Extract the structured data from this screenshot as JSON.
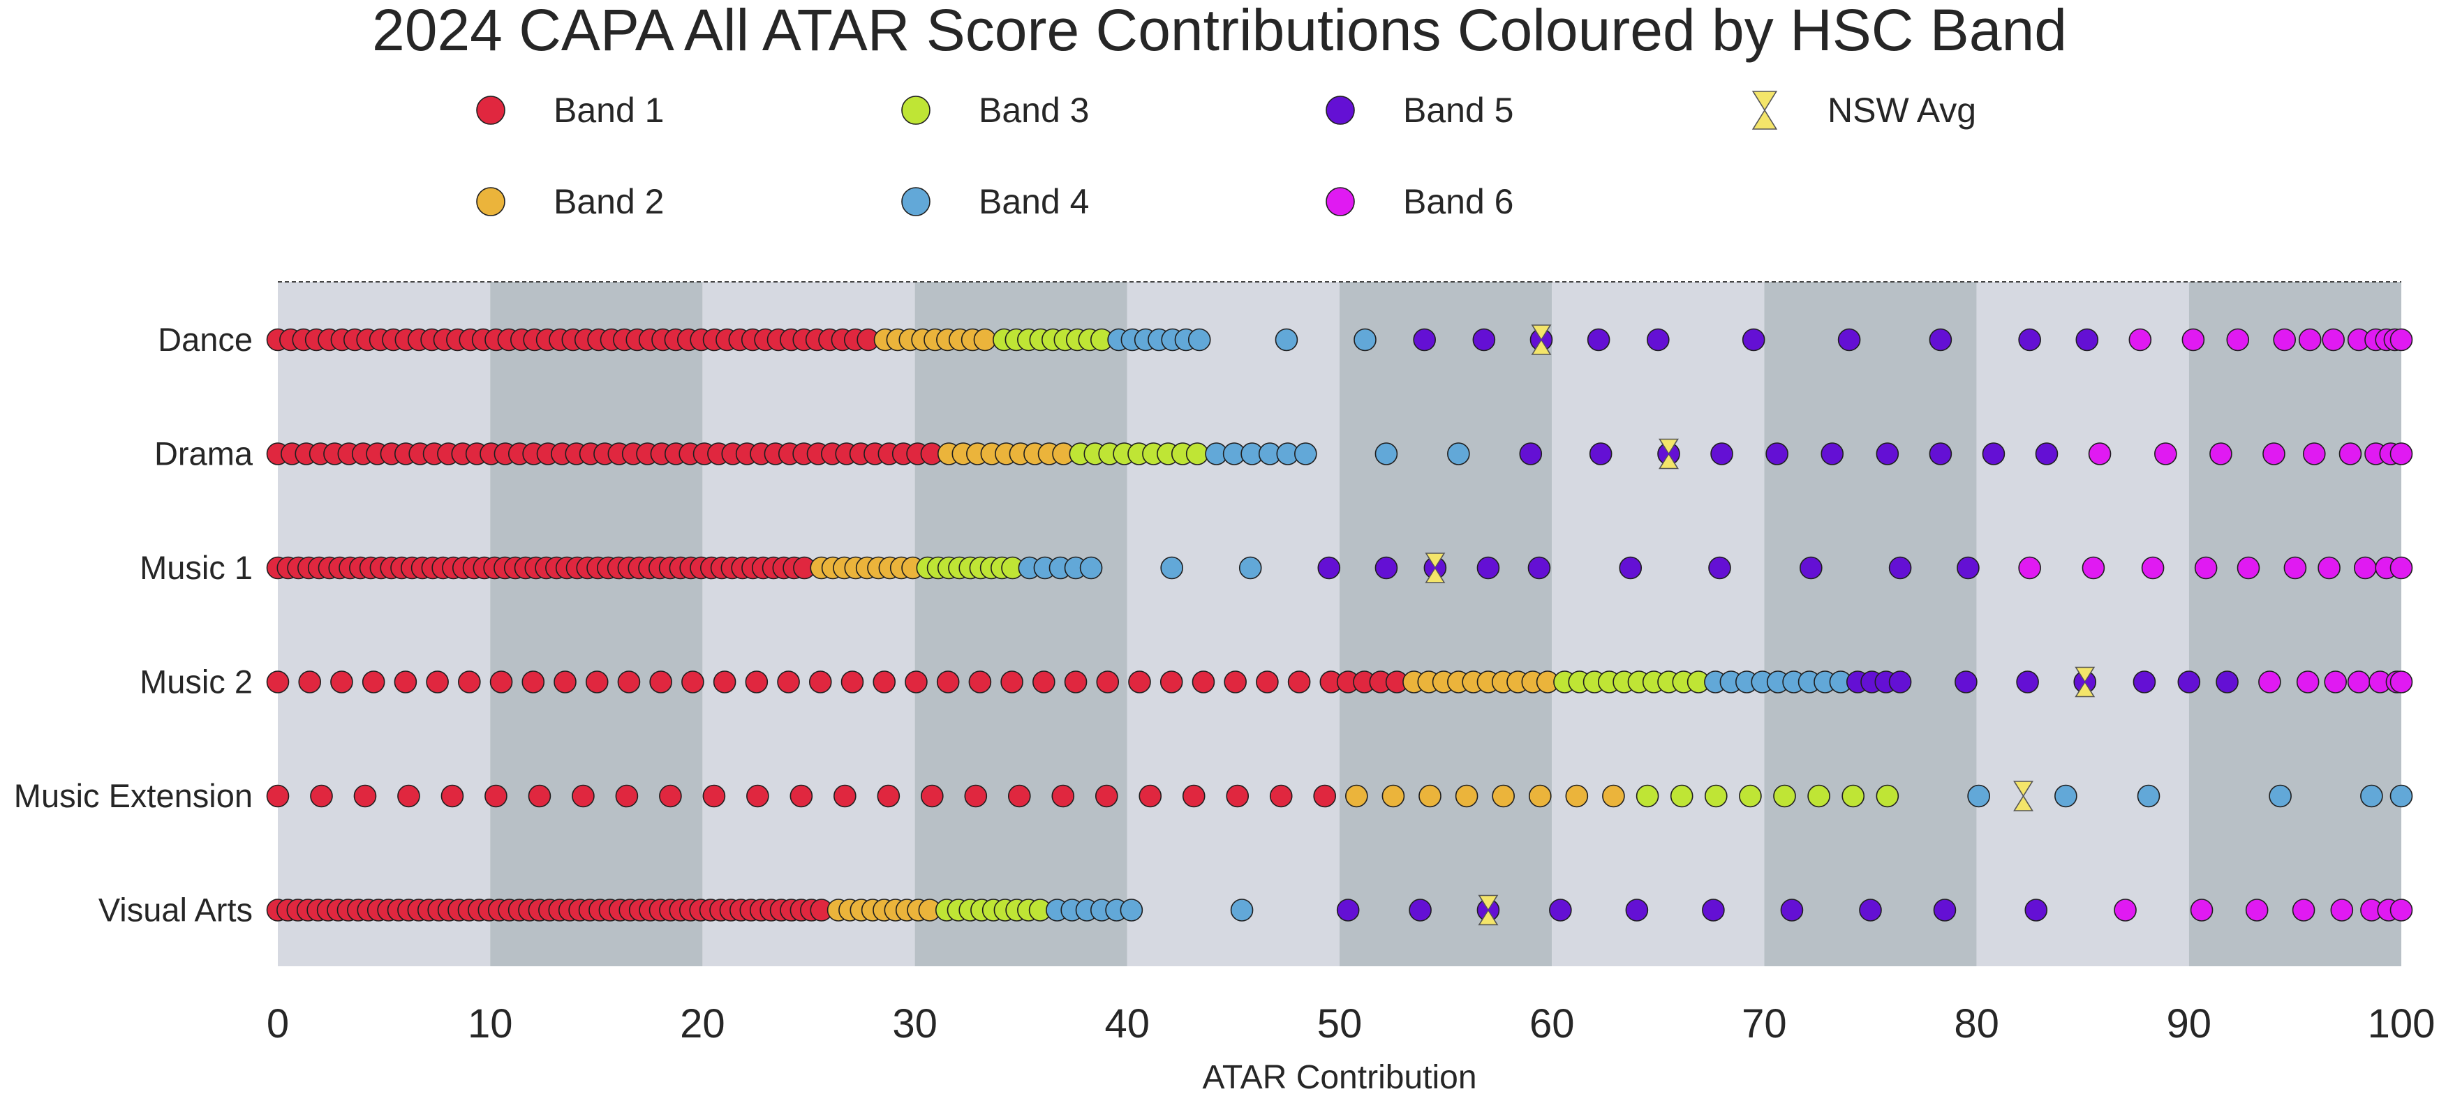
{
  "chart_data": {
    "type": "scatter",
    "title": "2024 CAPA All ATAR Score Contributions Coloured by HSC Band",
    "xlabel": "ATAR Contribution",
    "ylabel": "",
    "xlim": [
      0,
      100
    ],
    "x_ticks": [
      "0",
      "10",
      "20",
      "30",
      "40",
      "50",
      "60",
      "70",
      "80",
      "90",
      "100"
    ],
    "categories": [
      "Dance",
      "Drama",
      "Music 1",
      "Music 2",
      "Music Extension",
      "Visual Arts"
    ],
    "legend": [
      {
        "name": "Band 1",
        "color": "#e0273f",
        "marker": "circle"
      },
      {
        "name": "Band 2",
        "color": "#ebb43b",
        "marker": "circle"
      },
      {
        "name": "Band 3",
        "color": "#bfe535",
        "marker": "circle"
      },
      {
        "name": "Band 4",
        "color": "#62a8d8",
        "marker": "circle"
      },
      {
        "name": "Band 5",
        "color": "#6410d4",
        "marker": "circle"
      },
      {
        "name": "Band 6",
        "color": "#e01af2",
        "marker": "circle"
      },
      {
        "name": "NSW Avg",
        "color": "#f4e56a",
        "marker": "hourglass"
      }
    ],
    "shading": {
      "light": "#d6d9e1",
      "dark": "#b8c0c6"
    },
    "series": [
      {
        "category": "Dance",
        "nsw_avg": 59.5,
        "bands": [
          {
            "band": "Band 1",
            "min": 0,
            "max": 27.8,
            "count": 47
          },
          {
            "band": "Band 2",
            "min": 28.6,
            "max": 33.3,
            "count": 9
          },
          {
            "band": "Band 3",
            "min": 34.2,
            "max": 38.8,
            "count": 9
          },
          {
            "band": "Band 4",
            "min": 39.6,
            "max": 43.4,
            "count": 7
          },
          {
            "band": "Band 4",
            "points": [
              47.5,
              51.2
            ]
          },
          {
            "band": "Band 5",
            "points": [
              54.0,
              56.8,
              59.5,
              62.2,
              65.0,
              69.5,
              74.0,
              78.3,
              82.5,
              85.2
            ]
          },
          {
            "band": "Band 6",
            "points": [
              87.7,
              90.2,
              92.3,
              94.5,
              95.7,
              96.8,
              98.0,
              98.8,
              99.3,
              99.7,
              100
            ]
          }
        ]
      },
      {
        "category": "Drama",
        "nsw_avg": 65.5,
        "bands": [
          {
            "band": "Band 1",
            "min": 0,
            "max": 30.8,
            "count": 47
          },
          {
            "band": "Band 2",
            "min": 31.6,
            "max": 37.0,
            "count": 9
          },
          {
            "band": "Band 3",
            "min": 37.8,
            "max": 43.3,
            "count": 9
          },
          {
            "band": "Band 4",
            "min": 44.2,
            "max": 48.4,
            "count": 6
          },
          {
            "band": "Band 4",
            "points": [
              52.2,
              55.6
            ]
          },
          {
            "band": "Band 5",
            "points": [
              59.0,
              62.3,
              65.5,
              68.0,
              70.6,
              73.2,
              75.8,
              78.3,
              80.8,
              83.3
            ]
          },
          {
            "band": "Band 6",
            "points": [
              85.8,
              88.9,
              91.5,
              94.0,
              95.9,
              97.6,
              98.8,
              99.5,
              100
            ]
          }
        ]
      },
      {
        "category": "Music 1",
        "nsw_avg": 54.5,
        "bands": [
          {
            "band": "Band 1",
            "min": 0,
            "max": 24.8,
            "count": 52
          },
          {
            "band": "Band 2",
            "min": 25.6,
            "max": 29.9,
            "count": 9
          },
          {
            "band": "Band 3",
            "min": 30.6,
            "max": 34.6,
            "count": 9
          },
          {
            "band": "Band 4",
            "min": 35.4,
            "max": 38.3,
            "count": 5
          },
          {
            "band": "Band 4",
            "points": [
              42.1,
              45.8
            ]
          },
          {
            "band": "Band 5",
            "points": [
              49.5,
              52.2,
              54.5,
              57.0,
              59.4,
              63.7,
              67.9,
              72.2,
              76.4,
              79.6
            ]
          },
          {
            "band": "Band 6",
            "points": [
              82.5,
              85.5,
              88.3,
              90.8,
              92.8,
              95.0,
              96.6,
              98.3,
              99.3,
              100
            ]
          }
        ]
      },
      {
        "category": "Music 2",
        "nsw_avg": 85.1,
        "bands": [
          {
            "band": "Band 1",
            "min": 0,
            "max": 49.6,
            "count": 34
          },
          {
            "band": "Band 1",
            "min": 50.4,
            "max": 52.7,
            "count": 4
          },
          {
            "band": "Band 2",
            "min": 53.5,
            "max": 59.8,
            "count": 10
          },
          {
            "band": "Band 3",
            "min": 60.6,
            "max": 66.9,
            "count": 10
          },
          {
            "band": "Band 4",
            "min": 67.7,
            "max": 73.6,
            "count": 9
          },
          {
            "band": "Band 5",
            "min": 74.4,
            "max": 76.4,
            "count": 4
          },
          {
            "band": "Band 5",
            "points": [
              79.5,
              82.4,
              85.1,
              87.9,
              90.0,
              91.8
            ]
          },
          {
            "band": "Band 6",
            "points": [
              93.8,
              95.6,
              96.9,
              98.0,
              99.0,
              99.8,
              100
            ]
          }
        ]
      },
      {
        "category": "Music Extension",
        "nsw_avg": 82.2,
        "bands": [
          {
            "band": "Band 1",
            "min": 0,
            "max": 49.3,
            "count": 25
          },
          {
            "band": "Band 2",
            "min": 50.8,
            "max": 62.9,
            "count": 8
          },
          {
            "band": "Band 3",
            "min": 64.5,
            "max": 75.8,
            "count": 8
          },
          {
            "band": "Band 4",
            "points": [
              80.1,
              84.2,
              88.1,
              94.3,
              98.6,
              100
            ]
          }
        ]
      },
      {
        "category": "Visual Arts",
        "nsw_avg": 57.0,
        "bands": [
          {
            "band": "Band 1",
            "min": 0,
            "max": 25.6,
            "count": 55
          },
          {
            "band": "Band 2",
            "min": 26.4,
            "max": 30.7,
            "count": 9
          },
          {
            "band": "Band 3",
            "min": 31.5,
            "max": 35.9,
            "count": 9
          },
          {
            "band": "Band 4",
            "min": 36.7,
            "max": 40.2,
            "count": 6
          },
          {
            "band": "Band 4",
            "points": [
              45.4
            ]
          },
          {
            "band": "Band 5",
            "points": [
              50.4,
              53.8,
              57.0,
              60.4,
              64.0,
              67.6,
              71.3,
              75.0,
              78.5,
              82.8
            ]
          },
          {
            "band": "Band 6",
            "points": [
              87.0,
              90.6,
              93.2,
              95.4,
              97.2,
              98.6,
              99.4,
              100
            ]
          }
        ]
      }
    ]
  }
}
